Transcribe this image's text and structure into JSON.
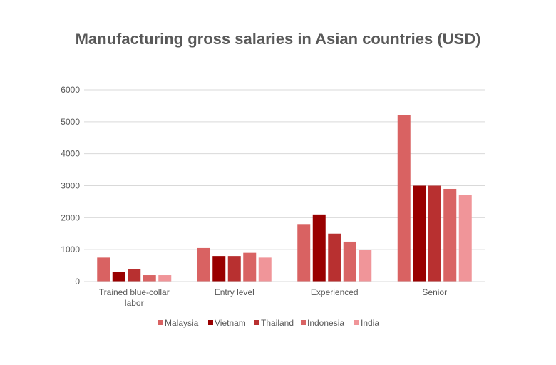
{
  "chart_data": {
    "type": "bar",
    "title": "Manufacturing gross salaries in Asian countries (USD)",
    "categories": [
      "Trained blue-collar labor",
      "Entry level",
      "Experienced",
      "Senior"
    ],
    "category_lines": [
      [
        "Trained blue-collar",
        "labor"
      ],
      [
        "Entry level"
      ],
      [
        "Experienced"
      ],
      [
        "Senior"
      ]
    ],
    "series": [
      {
        "name": "Malaysia",
        "color": "#d96262",
        "values": [
          750,
          1050,
          1800,
          5200
        ]
      },
      {
        "name": "Vietnam",
        "color": "#990000",
        "values": [
          300,
          800,
          2100,
          3000
        ]
      },
      {
        "name": "Thailand",
        "color": "#b83030",
        "values": [
          400,
          800,
          1500,
          3000
        ]
      },
      {
        "name": "Indonesia",
        "color": "#d96464",
        "values": [
          200,
          900,
          1250,
          2900
        ]
      },
      {
        "name": "India",
        "color": "#f09599",
        "values": [
          200,
          750,
          1000,
          2700
        ]
      }
    ],
    "ylim": [
      0,
      6000
    ],
    "yticks": [
      0,
      1000,
      2000,
      3000,
      4000,
      5000,
      6000
    ],
    "grid": true,
    "legend": "bottom"
  }
}
